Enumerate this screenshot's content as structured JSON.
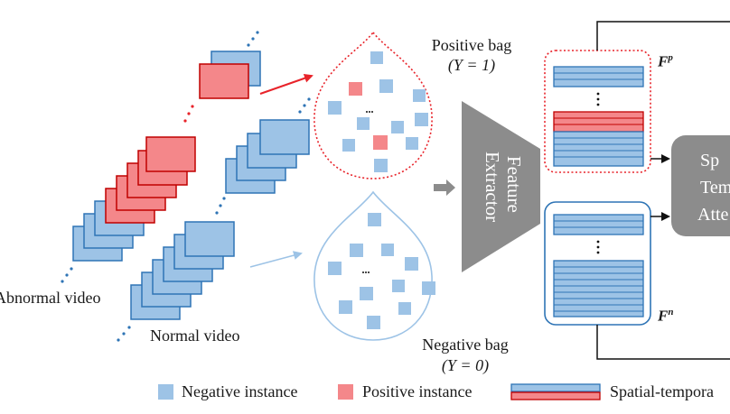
{
  "labels": {
    "abnormal_video": "Abnormal video",
    "normal_video": "Normal video",
    "positive_bag_title": "Positive bag",
    "positive_bag_y": "(Y = 1)",
    "negative_bag_title": "Negative bag",
    "negative_bag_y": "(Y = 0)",
    "feature_extractor_line1": "Feature",
    "feature_extractor_line2": "Extractor",
    "fp": "F",
    "fp_sup": "p",
    "fn": "F",
    "fn_sup": "n",
    "attention_line1": "Sp",
    "attention_line2": "Tem",
    "attention_line3": "Atte"
  },
  "legend": {
    "negative_instance": "Negative instance",
    "positive_instance": "Positive instance",
    "spatial_temporal": "Spatial-tempora"
  },
  "colors": {
    "negative": "#9dc3e6",
    "negative_border": "#2e74b5",
    "positive": "#f4878a",
    "positive_border": "#c00000",
    "extractor": "#808080",
    "arrow_red": "#e8232a",
    "arrow_blue": "#9dc3e6"
  }
}
